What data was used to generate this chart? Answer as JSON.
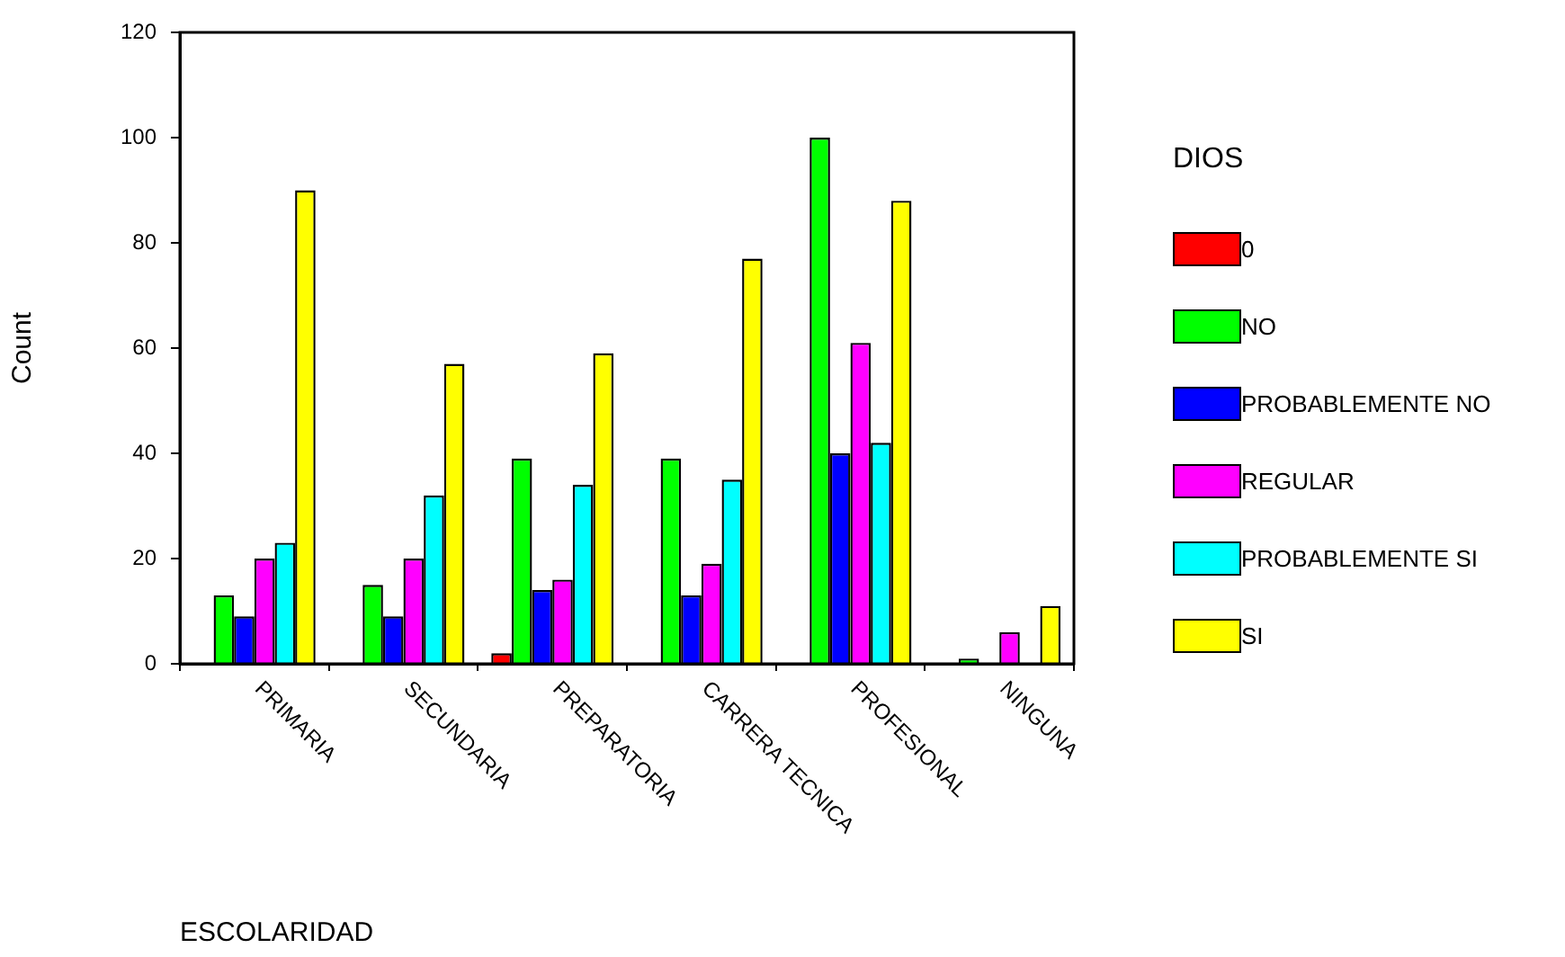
{
  "chart_data": {
    "type": "bar",
    "xlabel": "ESCOLARIDAD",
    "ylabel": "Count",
    "legend_title": "DIOS",
    "legend": "right",
    "grid": false,
    "categories": [
      "PRIMARIA",
      "SECUNDARIA",
      "PREPARATORIA",
      "CARRERA TECNICA",
      "PROFESIONAL",
      "NINGUNA"
    ],
    "ylim": [
      0,
      120
    ],
    "yticks": [
      0,
      20,
      40,
      60,
      80,
      100,
      120
    ],
    "series": [
      {
        "name": "0",
        "color": "#ff0000",
        "values": [
          null,
          null,
          2,
          null,
          null,
          null
        ]
      },
      {
        "name": "NO",
        "color": "#00ff00",
        "values": [
          13,
          15,
          39,
          39,
          100,
          1
        ]
      },
      {
        "name": "PROBABLEMENTE NO",
        "color": "#0000ff",
        "values": [
          9,
          9,
          14,
          13,
          40,
          null
        ]
      },
      {
        "name": "REGULAR",
        "color": "#ff00ff",
        "values": [
          20,
          20,
          16,
          19,
          61,
          6
        ]
      },
      {
        "name": "PROBABLEMENTE SI",
        "color": "#00ffff",
        "values": [
          23,
          32,
          34,
          35,
          42,
          null
        ]
      },
      {
        "name": "SI",
        "color": "#ffff00",
        "values": [
          90,
          57,
          59,
          77,
          88,
          11
        ]
      }
    ]
  }
}
